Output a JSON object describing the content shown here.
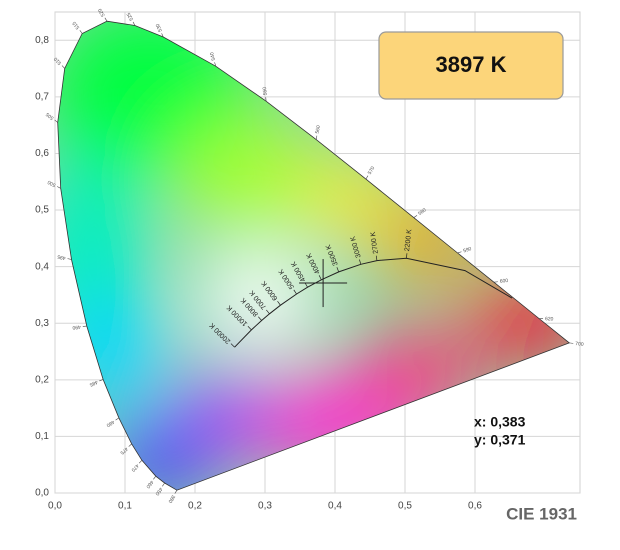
{
  "chart_data": {
    "type": "chromaticity",
    "title": "CIE 1931",
    "cct_label": "3897 K",
    "xlim": [
      0,
      0.75
    ],
    "ylim": [
      0,
      0.85
    ],
    "xticks": [
      {
        "value": 0,
        "label": "0,0"
      },
      {
        "value": 0.1,
        "label": "0,1"
      },
      {
        "value": 0.2,
        "label": "0,2"
      },
      {
        "value": 0.3,
        "label": "0,3"
      },
      {
        "value": 0.4,
        "label": "0,4"
      },
      {
        "value": 0.5,
        "label": "0,5"
      },
      {
        "value": 0.6,
        "label": "0,6"
      }
    ],
    "yticks": [
      {
        "value": 0,
        "label": "0,0"
      },
      {
        "value": 0.1,
        "label": "0,1"
      },
      {
        "value": 0.2,
        "label": "0,2"
      },
      {
        "value": 0.3,
        "label": "0,3"
      },
      {
        "value": 0.4,
        "label": "0,4"
      },
      {
        "value": 0.5,
        "label": "0,5"
      },
      {
        "value": 0.6,
        "label": "0,6"
      },
      {
        "value": 0.7,
        "label": "0,7"
      },
      {
        "value": 0.8,
        "label": "0,8"
      }
    ],
    "grid": true,
    "spectral_locus": {
      "labels": [
        380,
        450,
        460,
        470,
        475,
        480,
        485,
        490,
        495,
        500,
        505,
        510,
        515,
        520,
        525,
        530,
        540,
        550,
        560,
        570,
        580,
        590,
        600,
        620,
        700
      ],
      "x": [
        0.1741,
        0.1566,
        0.144,
        0.1241,
        0.1096,
        0.0913,
        0.0687,
        0.0454,
        0.0235,
        0.0082,
        0.0039,
        0.0139,
        0.0389,
        0.0743,
        0.1142,
        0.1547,
        0.2296,
        0.3016,
        0.3731,
        0.4441,
        0.5125,
        0.5752,
        0.627,
        0.6915,
        0.7347
      ],
      "y": [
        0.005,
        0.0177,
        0.0297,
        0.0578,
        0.0868,
        0.1327,
        0.2007,
        0.295,
        0.4127,
        0.5384,
        0.6548,
        0.7502,
        0.812,
        0.8338,
        0.8262,
        0.8059,
        0.7543,
        0.6923,
        0.6245,
        0.5547,
        0.4866,
        0.4242,
        0.3725,
        0.3083,
        0.2653
      ]
    },
    "planckian_locus": {
      "labels": [
        null,
        null,
        "2200 K",
        "2700 K",
        "3000 K",
        "3500 K",
        "4000 K",
        "4500 K",
        "5000 K",
        "6000 K",
        "7000 K",
        "8000 K",
        "10000 K",
        "20000 K"
      ],
      "x": [
        0.6528,
        0.5857,
        0.502,
        0.4599,
        0.4369,
        0.4053,
        0.3805,
        0.3608,
        0.3451,
        0.3221,
        0.3064,
        0.2952,
        0.2806,
        0.2565
      ],
      "y": [
        0.3444,
        0.3931,
        0.4149,
        0.4106,
        0.4041,
        0.3907,
        0.3768,
        0.3636,
        0.3516,
        0.3318,
        0.3166,
        0.3048,
        0.2883,
        0.2577
      ]
    },
    "marker": {
      "x": 0.383,
      "y": 0.371,
      "x_label": "x: 0,383",
      "y_label": "y: 0,371"
    }
  }
}
